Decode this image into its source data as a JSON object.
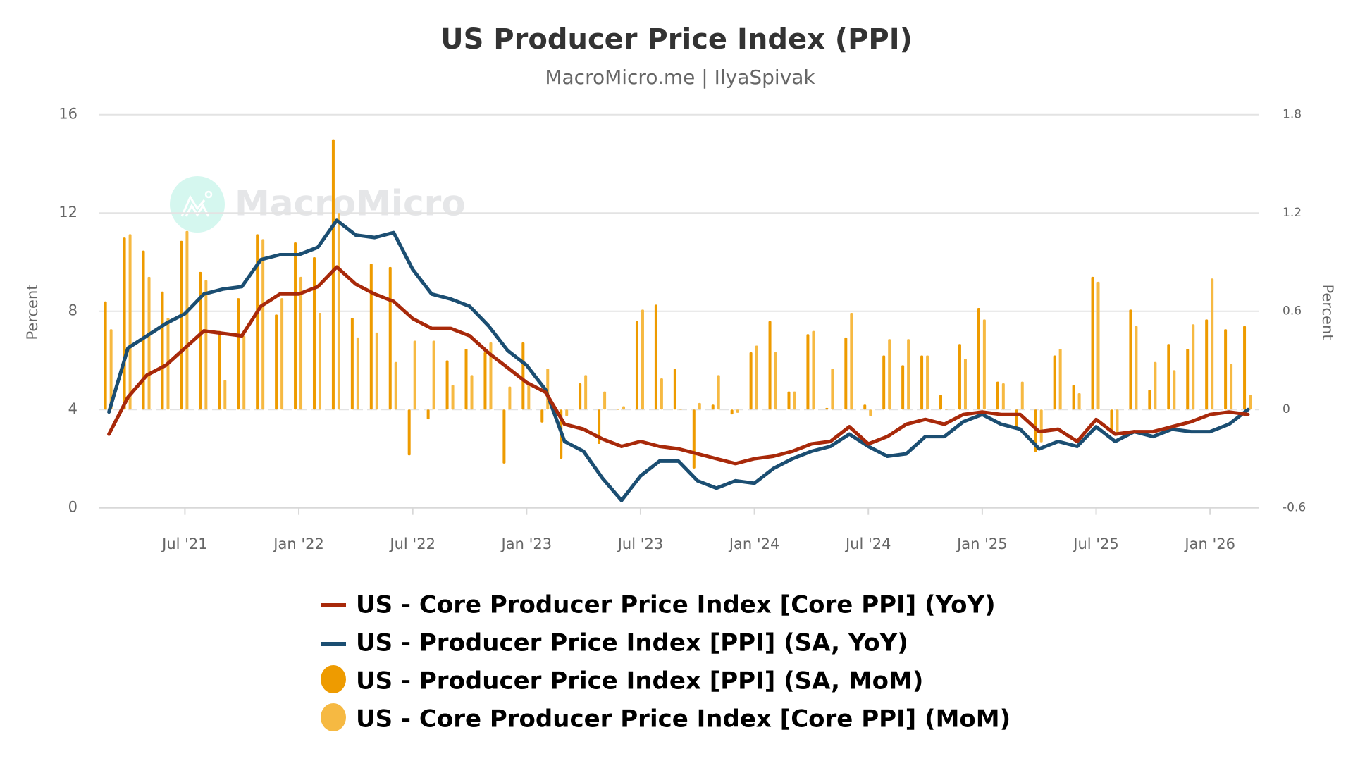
{
  "chart_data": {
    "type": "bar+line",
    "title": "US Producer Price Index (PPI)",
    "subtitle": "MacroMicro.me | IlyaSpivak",
    "watermark": "MacroMicro",
    "x": [
      "2021-03",
      "2021-04",
      "2021-05",
      "2021-06",
      "2021-07",
      "2021-08",
      "2021-09",
      "2021-10",
      "2021-11",
      "2021-12",
      "2022-01",
      "2022-02",
      "2022-03",
      "2022-04",
      "2022-05",
      "2022-06",
      "2022-07",
      "2022-08",
      "2022-09",
      "2022-10",
      "2022-11",
      "2022-12",
      "2023-01",
      "2023-02",
      "2023-03",
      "2023-04",
      "2023-05",
      "2023-06",
      "2023-07",
      "2023-08",
      "2023-09",
      "2023-10",
      "2023-11",
      "2023-12",
      "2024-01",
      "2024-02",
      "2024-03",
      "2024-04",
      "2024-05",
      "2024-06",
      "2024-07",
      "2024-08",
      "2024-09",
      "2024-10",
      "2024-11",
      "2024-12",
      "2025-01",
      "2025-02",
      "2025-03",
      "2025-04",
      "2025-05",
      "2025-06",
      "2025-07",
      "2025-08",
      "2025-09",
      "2025-10",
      "2025-11",
      "2025-12",
      "2026-01",
      "2026-02",
      "2026-03"
    ],
    "xlim": [
      "2021-02-16",
      "2026-03-19"
    ],
    "x_ticks": [
      {
        "date": "2021-07",
        "label": "Jul '21"
      },
      {
        "date": "2022-01",
        "label": "Jan '22"
      },
      {
        "date": "2022-07",
        "label": "Jul '22"
      },
      {
        "date": "2023-01",
        "label": "Jan '23"
      },
      {
        "date": "2023-07",
        "label": "Jul '23"
      },
      {
        "date": "2024-01",
        "label": "Jan '24"
      },
      {
        "date": "2024-07",
        "label": "Jul '24"
      },
      {
        "date": "2025-01",
        "label": "Jan '25"
      },
      {
        "date": "2025-07",
        "label": "Jul '25"
      },
      {
        "date": "2026-01",
        "label": "Jan '26"
      }
    ],
    "y_left": {
      "label": "Percent",
      "lim": [
        0,
        16
      ],
      "ticks": [
        "0",
        "4",
        "8",
        "12",
        "16"
      ]
    },
    "y_right": {
      "label": "Percent",
      "lim": [
        -0.6,
        1.8
      ],
      "ticks": [
        "-0.6",
        "0",
        "0.6",
        "1.2",
        "1.8"
      ]
    },
    "grid": true,
    "legend_position": "bottom",
    "series": [
      {
        "name": "US - Core Producer Price Index [Core PPI] (YoY)",
        "type": "line",
        "axis": "left",
        "color": "#a8290a",
        "values": [
          3.0,
          4.5,
          5.4,
          5.8,
          6.5,
          7.2,
          7.1,
          7.0,
          8.2,
          8.7,
          8.7,
          9.0,
          9.8,
          9.1,
          8.7,
          8.4,
          7.7,
          7.3,
          7.3,
          7.0,
          6.3,
          5.7,
          5.1,
          4.7,
          3.4,
          3.2,
          2.8,
          2.5,
          2.7,
          2.5,
          2.4,
          2.2,
          2.0,
          1.8,
          2.0,
          2.1,
          2.3,
          2.6,
          2.7,
          3.3,
          2.6,
          2.9,
          3.4,
          3.6,
          3.4,
          3.8,
          3.9,
          3.8,
          3.8,
          3.1,
          3.2,
          2.7,
          3.6,
          3.0,
          3.1,
          3.1,
          3.3,
          3.5,
          3.8,
          3.9,
          3.8
        ]
      },
      {
        "name": "US - Producer Price Index [PPI] (SA, YoY)",
        "type": "line",
        "axis": "left",
        "color": "#1b4e72",
        "values": [
          3.9,
          6.5,
          7.0,
          7.5,
          7.9,
          8.7,
          8.9,
          9.0,
          10.1,
          10.3,
          10.3,
          10.6,
          11.7,
          11.1,
          11.0,
          11.2,
          9.7,
          8.7,
          8.5,
          8.2,
          7.4,
          6.4,
          5.8,
          4.8,
          2.7,
          2.3,
          1.2,
          0.3,
          1.3,
          1.9,
          1.9,
          1.1,
          0.8,
          1.1,
          1.0,
          1.6,
          2.0,
          2.3,
          2.5,
          3.0,
          2.5,
          2.1,
          2.2,
          2.9,
          2.9,
          3.5,
          3.8,
          3.4,
          3.2,
          2.4,
          2.7,
          2.5,
          3.3,
          2.7,
          3.1,
          2.9,
          3.2,
          3.1,
          3.1,
          3.4,
          4.0
        ]
      },
      {
        "name": "US - Producer Price Index [PPI] (SA, MoM)",
        "type": "bar",
        "axis": "right",
        "color": "#ee9b00",
        "values": [
          0.66,
          1.05,
          0.97,
          0.72,
          1.03,
          0.84,
          0.48,
          0.68,
          1.07,
          0.58,
          1.02,
          0.93,
          1.65,
          0.56,
          0.89,
          0.87,
          -0.28,
          -0.06,
          0.3,
          0.37,
          0.35,
          -0.33,
          0.41,
          -0.08,
          -0.3,
          0.16,
          -0.21,
          0,
          0.54,
          0.64,
          0.25,
          -0.36,
          0.03,
          -0.03,
          0.35,
          0.54,
          0.11,
          0.46,
          0.01,
          0.44,
          0.03,
          0.33,
          0.27,
          0.33,
          0.09,
          0.4,
          0.62,
          0.17,
          -0.11,
          -0.26,
          0.33,
          0.15,
          0.81,
          -0.13,
          0.61,
          0.12,
          0.4,
          0.37,
          0.55,
          0.49,
          0.51
        ]
      },
      {
        "name": "US - Core Producer Price Index [Core PPI] (MoM)",
        "type": "bar",
        "axis": "right",
        "color": "#f6b942",
        "values": [
          0.49,
          1.07,
          0.81,
          0.56,
          1.09,
          0.79,
          0.18,
          0.45,
          1.04,
          0.68,
          0.81,
          0.59,
          1.2,
          0.44,
          0.47,
          0.29,
          0.42,
          0.42,
          0.15,
          0.21,
          0.41,
          0.14,
          0.16,
          0.25,
          -0.04,
          0.21,
          0.11,
          0.02,
          0.61,
          0.19,
          0,
          0.04,
          0.21,
          -0.02,
          0.39,
          0.35,
          0.11,
          0.48,
          0.25,
          0.59,
          -0.04,
          0.43,
          0.43,
          0.33,
          0,
          0.31,
          0.55,
          0.16,
          0.17,
          -0.2,
          0.37,
          0.1,
          0.78,
          -0.15,
          0.51,
          0.29,
          0.24,
          0.52,
          0.8,
          0.28,
          0.09
        ]
      }
    ]
  },
  "legend": [
    {
      "label": "US - Core Producer Price Index [Core PPI] (YoY)",
      "marker": "line",
      "color": "#a8290a"
    },
    {
      "label": "US - Producer Price Index [PPI] (SA, YoY)",
      "marker": "line",
      "color": "#1b4e72"
    },
    {
      "label": "US - Producer Price Index [PPI] (SA, MoM)",
      "marker": "circle",
      "color": "#ee9b00"
    },
    {
      "label": "US - Core Producer Price Index [Core PPI] (MoM)",
      "marker": "circle",
      "color": "#f6b942"
    }
  ]
}
